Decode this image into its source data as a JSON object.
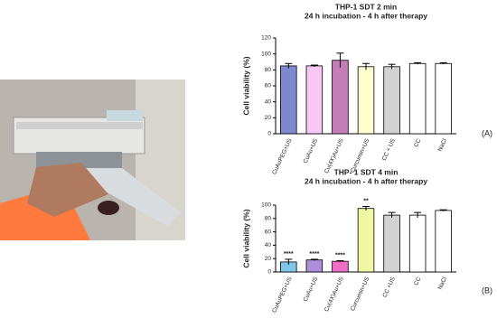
{
  "chart_data": [
    {
      "type": "bar",
      "title": "THP-1 SDT 2 min",
      "subtitle": "24 h incubation - 4 h after therapy",
      "ylabel": "Cell viability (%)",
      "categories": [
        "CuAuPEG+US",
        "CuAu+US",
        "Cu(4X)Au+US",
        "Curcumin+US",
        "CC + US",
        "CC",
        "NaCl"
      ],
      "values": [
        85,
        85,
        92,
        84,
        84,
        88,
        88
      ],
      "errors": [
        3,
        1,
        9,
        4,
        3,
        1,
        1
      ],
      "colors": [
        "#7f88cc",
        "#f7c8f3",
        "#c47db8",
        "#ffffcf",
        "#d2d2d2",
        "#ffffff",
        "#ffffff"
      ],
      "ylim": [
        0,
        120
      ],
      "yticks": [
        0,
        20,
        40,
        60,
        80,
        100,
        120
      ],
      "panel_label": "(A)"
    },
    {
      "type": "bar",
      "title": "THP- 1 SDT 4 min",
      "subtitle": "24 h incubation - 4 h after therapy",
      "ylabel": "Cell viability (%)",
      "categories": [
        "CuAuPEG+US",
        "CuAu+US",
        "Cu(4X)Au+US",
        "Curcumin+US",
        "CC +US",
        "CC",
        "NaCl"
      ],
      "values": [
        15,
        18,
        16,
        95,
        85,
        85,
        92
      ],
      "errors": [
        4,
        1,
        1,
        3,
        4,
        4,
        1
      ],
      "colors": [
        "#7fc6ea",
        "#ad8fd9",
        "#f06ec8",
        "#eff7a2",
        "#d2d2d2",
        "#ffffff",
        "#ffffff"
      ],
      "significance": [
        "****",
        "****",
        "****",
        "**",
        null,
        null,
        null
      ],
      "ylim": [
        0,
        100
      ],
      "yticks": [
        0,
        20,
        40,
        60,
        80,
        100
      ],
      "panel_label": "(B)"
    }
  ]
}
